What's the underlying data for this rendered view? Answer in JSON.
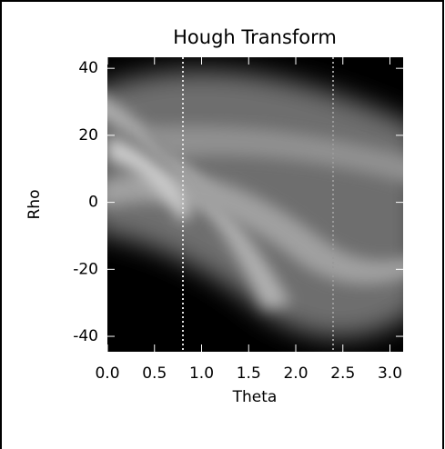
{
  "chart_data": {
    "type": "image",
    "title": "Hough Transform",
    "x_label": "Theta",
    "y_label": "Rho",
    "xlim": [
      0,
      3.14
    ],
    "ylim": [
      -44.6,
      43.3
    ],
    "xticks": [
      {
        "value": 0,
        "label": "0.0"
      },
      0.5,
      {
        "value": 1,
        "label": "1.0"
      },
      1.5,
      {
        "value": 2,
        "label": "2.0"
      },
      2.5,
      {
        "value": 3,
        "label": "3.0"
      }
    ],
    "yticks": [
      -40,
      -20,
      0,
      20,
      40
    ]
  }
}
